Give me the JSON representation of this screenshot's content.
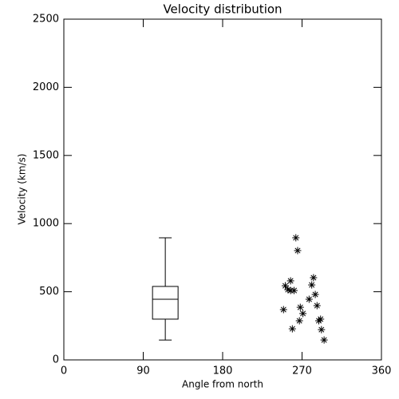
{
  "chart_data": {
    "type": "scatter",
    "title": "Velocity distribution",
    "x_label": "Angle from north",
    "y_label": "Velocity (km/s)",
    "xlim": [
      0,
      360
    ],
    "xticks": [
      0,
      90,
      180,
      270,
      360
    ],
    "ylim": [
      0,
      2500
    ],
    "yticks": [
      0,
      500,
      1000,
      1500,
      2000,
      2500
    ],
    "color": "#000000",
    "box": {
      "x": 115,
      "min": 146,
      "q1": 299,
      "median": 445,
      "q3": 539,
      "max": 896
    },
    "x": [
      263,
      265,
      283,
      257,
      251,
      281,
      254,
      257,
      261,
      285,
      278,
      287,
      268,
      249,
      271,
      291,
      267,
      289,
      259,
      292,
      295
    ],
    "values": [
      896,
      802,
      603,
      580,
      544,
      550,
      515,
      509,
      509,
      480,
      445,
      398,
      386,
      369,
      340,
      299,
      287,
      287,
      228,
      222,
      146
    ]
  }
}
